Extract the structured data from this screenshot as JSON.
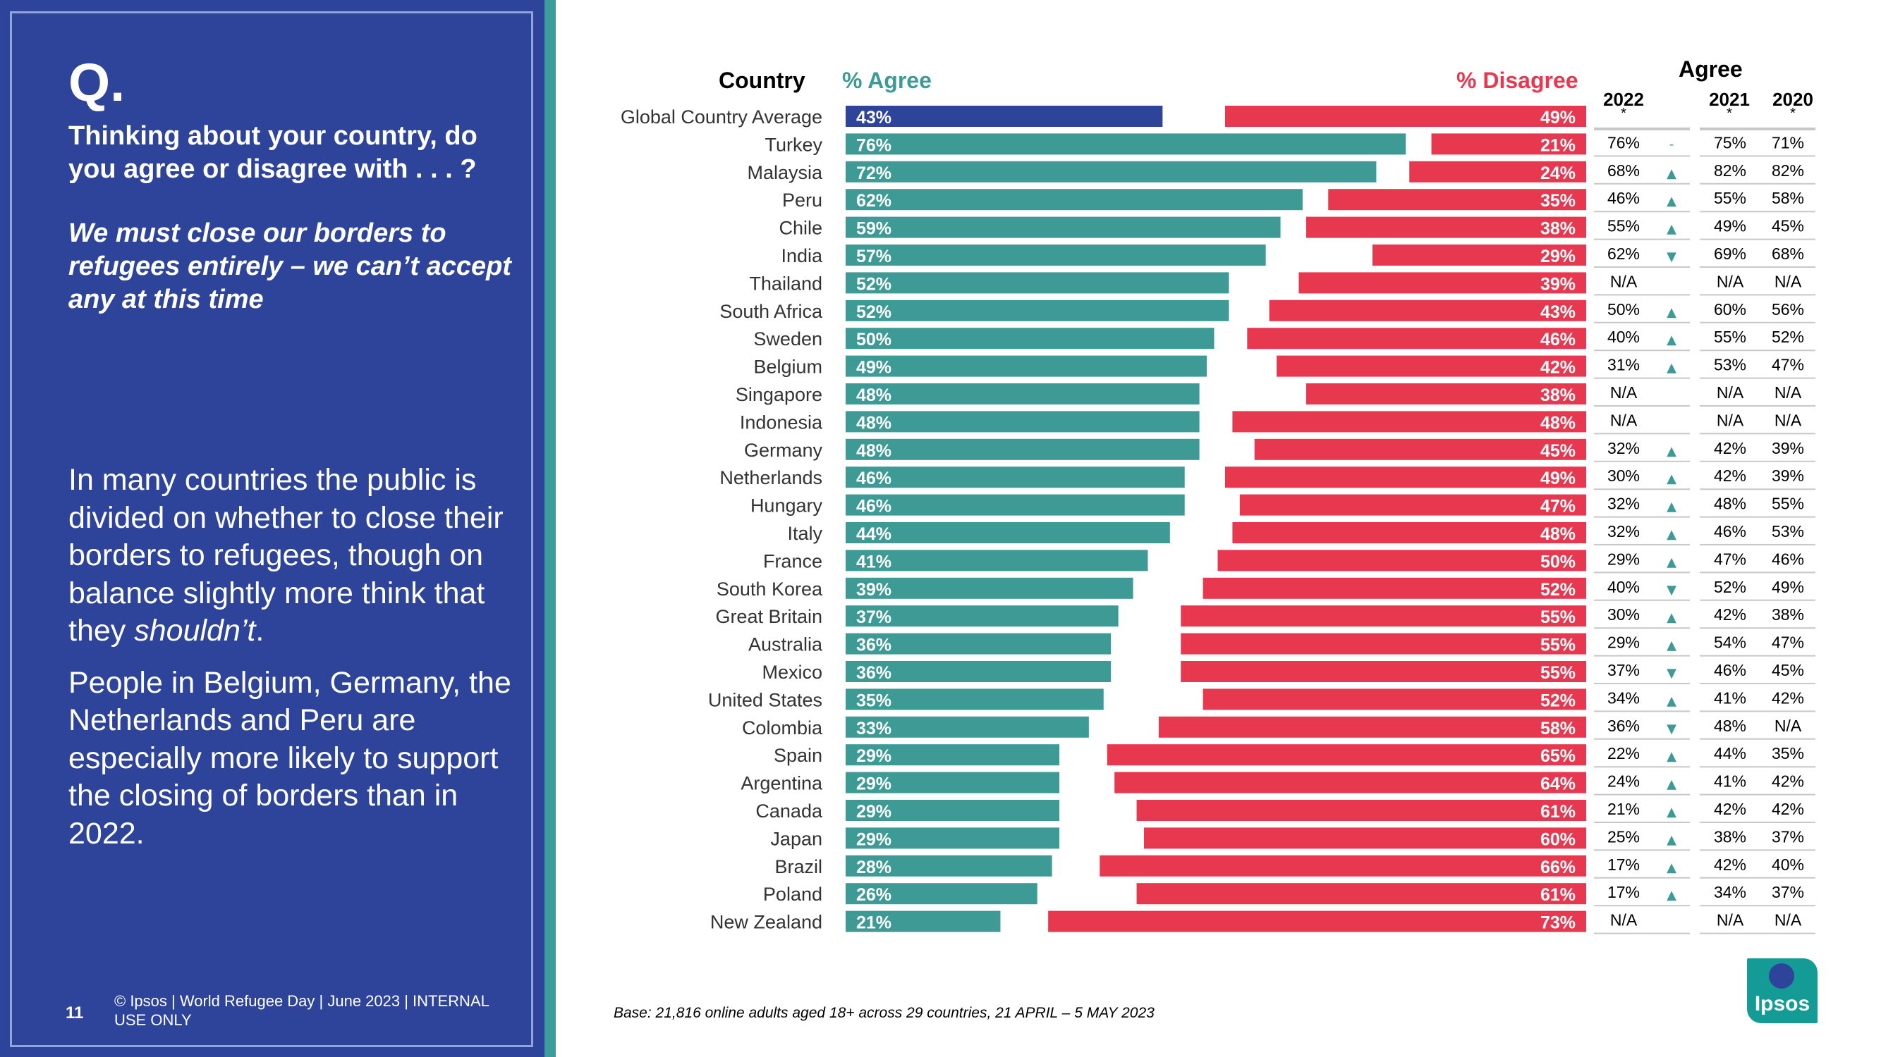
{
  "left": {
    "q_letter": "Q.",
    "question": "Thinking about your country, do you agree or disagree with . . . ?",
    "statement": "We must close our borders to refugees entirely – we can’t accept any at this time",
    "summary_1a": "In many countries the public is divided on whether to close their borders to refugees, though on balance slightly more think that they ",
    "summary_1b": "shouldn’t",
    "summary_1c": ".",
    "summary_2": "People in Belgium, Germany, the Netherlands and Peru are especially more likely to support the closing of borders than in 2022.",
    "page_number": "11",
    "footer": "© Ipsos | World Refugee Day | June 2023 | INTERNAL USE ONLY"
  },
  "headers": {
    "country": "Country",
    "agree": "% Agree",
    "disagree": "% Disagree",
    "agree_group": "Agree",
    "y2022": "2022",
    "y2021": "2021",
    "y2020": "2020",
    "star": "*"
  },
  "base_note": "Base: 21,816 online adults aged 18+ across 29 countries,  21 APRIL – 5 MAY 2023",
  "logo_text": "Ipsos",
  "colors": {
    "agree": "#3d9a94",
    "global_agree": "#2e449b",
    "disagree": "#e8384f",
    "panel": "#2e449b",
    "trend_arrow": "#3d9a94"
  },
  "chart_data": {
    "type": "bar",
    "title": "We must close our borders to refugees entirely – we can’t accept any at this time",
    "series": [
      {
        "name": "% Agree",
        "values": [
          43,
          76,
          72,
          62,
          59,
          57,
          52,
          52,
          50,
          49,
          48,
          48,
          48,
          46,
          46,
          44,
          41,
          39,
          37,
          36,
          36,
          35,
          33,
          29,
          29,
          29,
          29,
          28,
          26,
          21
        ]
      },
      {
        "name": "% Disagree",
        "values": [
          49,
          21,
          24,
          35,
          38,
          29,
          39,
          43,
          46,
          42,
          38,
          48,
          45,
          49,
          47,
          48,
          50,
          52,
          55,
          55,
          55,
          52,
          58,
          65,
          64,
          61,
          60,
          66,
          61,
          73
        ]
      }
    ],
    "rows": [
      {
        "country": "Global Country Average",
        "agree": 43,
        "disagree": 49,
        "agree_label": "43%",
        "disagree_label": "49%",
        "y2022": "",
        "trend": "",
        "y2021": "",
        "y2020": ""
      },
      {
        "country": "Turkey",
        "agree": 76,
        "disagree": 21,
        "agree_label": "76%",
        "disagree_label": "21%",
        "y2022": "76%",
        "trend": "-",
        "y2021": "75%",
        "y2020": "71%"
      },
      {
        "country": "Malaysia",
        "agree": 72,
        "disagree": 24,
        "agree_label": "72%",
        "disagree_label": "24%",
        "y2022": "68%",
        "trend": "▲",
        "y2021": "82%",
        "y2020": "82%"
      },
      {
        "country": "Peru",
        "agree": 62,
        "disagree": 35,
        "agree_label": "62%",
        "disagree_label": "35%",
        "y2022": "46%",
        "trend": "▲",
        "y2021": "55%",
        "y2020": "58%"
      },
      {
        "country": "Chile",
        "agree": 59,
        "disagree": 38,
        "agree_label": "59%",
        "disagree_label": "38%",
        "y2022": "55%",
        "trend": "▲",
        "y2021": "49%",
        "y2020": "45%"
      },
      {
        "country": "India",
        "agree": 57,
        "disagree": 29,
        "agree_label": "57%",
        "disagree_label": "29%",
        "y2022": "62%",
        "trend": "▼",
        "y2021": "69%",
        "y2020": "68%"
      },
      {
        "country": "Thailand",
        "agree": 52,
        "disagree": 39,
        "agree_label": "52%",
        "disagree_label": "39%",
        "y2022": "N/A",
        "trend": "",
        "y2021": "N/A",
        "y2020": "N/A"
      },
      {
        "country": "South Africa",
        "agree": 52,
        "disagree": 43,
        "agree_label": "52%",
        "disagree_label": "43%",
        "y2022": "50%",
        "trend": "▲",
        "y2021": "60%",
        "y2020": "56%"
      },
      {
        "country": "Sweden",
        "agree": 50,
        "disagree": 46,
        "agree_label": "50%",
        "disagree_label": "46%",
        "y2022": "40%",
        "trend": "▲",
        "y2021": "55%",
        "y2020": "52%"
      },
      {
        "country": "Belgium",
        "agree": 49,
        "disagree": 42,
        "agree_label": "49%",
        "disagree_label": "42%",
        "y2022": "31%",
        "trend": "▲",
        "y2021": "53%",
        "y2020": "47%"
      },
      {
        "country": "Singapore",
        "agree": 48,
        "disagree": 38,
        "agree_label": "48%",
        "disagree_label": "38%",
        "y2022": "N/A",
        "trend": "",
        "y2021": "N/A",
        "y2020": "N/A"
      },
      {
        "country": "Indonesia",
        "agree": 48,
        "disagree": 48,
        "agree_label": "48%",
        "disagree_label": "48%",
        "y2022": "N/A",
        "trend": "",
        "y2021": "N/A",
        "y2020": "N/A"
      },
      {
        "country": "Germany",
        "agree": 48,
        "disagree": 45,
        "agree_label": "48%",
        "disagree_label": "45%",
        "y2022": "32%",
        "trend": "▲",
        "y2021": "42%",
        "y2020": "39%"
      },
      {
        "country": "Netherlands",
        "agree": 46,
        "disagree": 49,
        "agree_label": "46%",
        "disagree_label": "49%",
        "y2022": "30%",
        "trend": "▲",
        "y2021": "42%",
        "y2020": "39%"
      },
      {
        "country": "Hungary",
        "agree": 46,
        "disagree": 47,
        "agree_label": "46%",
        "disagree_label": "47%",
        "y2022": "32%",
        "trend": "▲",
        "y2021": "48%",
        "y2020": "55%"
      },
      {
        "country": "Italy",
        "agree": 44,
        "disagree": 48,
        "agree_label": "44%",
        "disagree_label": "48%",
        "y2022": "32%",
        "trend": "▲",
        "y2021": "46%",
        "y2020": "53%"
      },
      {
        "country": "France",
        "agree": 41,
        "disagree": 50,
        "agree_label": "41%",
        "disagree_label": "50%",
        "y2022": "29%",
        "trend": "▲",
        "y2021": "47%",
        "y2020": "46%"
      },
      {
        "country": "South Korea",
        "agree": 39,
        "disagree": 52,
        "agree_label": "39%",
        "disagree_label": "52%",
        "y2022": "40%",
        "trend": "▼",
        "y2021": "52%",
        "y2020": "49%"
      },
      {
        "country": "Great Britain",
        "agree": 37,
        "disagree": 55,
        "agree_label": "37%",
        "disagree_label": "55%",
        "y2022": "30%",
        "trend": "▲",
        "y2021": "42%",
        "y2020": "38%"
      },
      {
        "country": "Australia",
        "agree": 36,
        "disagree": 55,
        "agree_label": "36%",
        "disagree_label": "55%",
        "y2022": "29%",
        "trend": "▲",
        "y2021": "54%",
        "y2020": "47%"
      },
      {
        "country": "Mexico",
        "agree": 36,
        "disagree": 55,
        "agree_label": "36%",
        "disagree_label": "55%",
        "y2022": "37%",
        "trend": "▼",
        "y2021": "46%",
        "y2020": "45%"
      },
      {
        "country": "United States",
        "agree": 35,
        "disagree": 52,
        "agree_label": "35%",
        "disagree_label": "52%",
        "y2022": "34%",
        "trend": "▲",
        "y2021": "41%",
        "y2020": "42%"
      },
      {
        "country": "Colombia",
        "agree": 33,
        "disagree": 58,
        "agree_label": "33%",
        "disagree_label": "58%",
        "y2022": "36%",
        "trend": "▼",
        "y2021": "48%",
        "y2020": "N/A"
      },
      {
        "country": "Spain",
        "agree": 29,
        "disagree": 65,
        "agree_label": "29%",
        "disagree_label": "65%",
        "y2022": "22%",
        "trend": "▲",
        "y2021": "44%",
        "y2020": "35%"
      },
      {
        "country": "Argentina",
        "agree": 29,
        "disagree": 64,
        "agree_label": "29%",
        "disagree_label": "64%",
        "y2022": "24%",
        "trend": "▲",
        "y2021": "41%",
        "y2020": "42%"
      },
      {
        "country": "Canada",
        "agree": 29,
        "disagree": 61,
        "agree_label": "29%",
        "disagree_label": "61%",
        "y2022": "21%",
        "trend": "▲",
        "y2021": "42%",
        "y2020": "42%"
      },
      {
        "country": "Japan",
        "agree": 29,
        "disagree": 60,
        "agree_label": "29%",
        "disagree_label": "60%",
        "y2022": "25%",
        "trend": "▲",
        "y2021": "38%",
        "y2020": "37%"
      },
      {
        "country": "Brazil",
        "agree": 28,
        "disagree": 66,
        "agree_label": "28%",
        "disagree_label": "66%",
        "y2022": "17%",
        "trend": "▲",
        "y2021": "42%",
        "y2020": "40%"
      },
      {
        "country": "Poland",
        "agree": 26,
        "disagree": 61,
        "agree_label": "26%",
        "disagree_label": "61%",
        "y2022": "17%",
        "trend": "▲",
        "y2021": "34%",
        "y2020": "37%"
      },
      {
        "country": "New Zealand",
        "agree": 21,
        "disagree": 73,
        "agree_label": "21%",
        "disagree_label": "73%",
        "y2022": "N/A",
        "trend": "",
        "y2021": "N/A",
        "y2020": "N/A"
      }
    ]
  }
}
